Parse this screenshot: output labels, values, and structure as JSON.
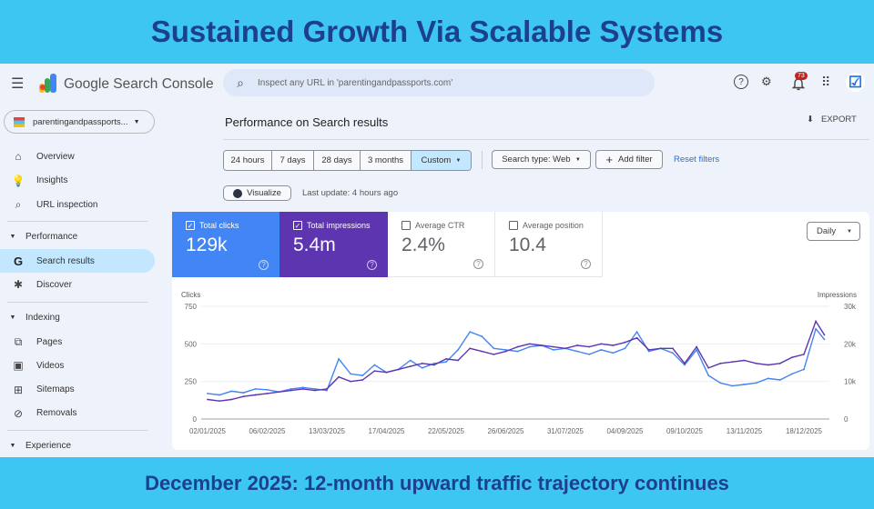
{
  "banner_top": "Sustained Growth Via Scalable Systems",
  "banner_bottom": "December 2025: 12-month upward traffic trajectory continues",
  "app": {
    "title": "Google Search Console",
    "search_placeholder": "Inspect any URL in 'parentingandpassports.com'",
    "notification_count": "73"
  },
  "property": "parentingandpassports...",
  "sidebar": {
    "items_top": [
      {
        "label": "Overview",
        "icon": "home-icon"
      },
      {
        "label": "Insights",
        "icon": "lightbulb-icon"
      },
      {
        "label": "URL inspection",
        "icon": "search-icon"
      }
    ],
    "performance": {
      "label": "Performance",
      "items": [
        {
          "label": "Search results",
          "icon": "google-g-icon",
          "active": true
        },
        {
          "label": "Discover",
          "icon": "asterisk-icon"
        }
      ]
    },
    "indexing": {
      "label": "Indexing",
      "items": [
        {
          "label": "Pages",
          "icon": "pages-icon"
        },
        {
          "label": "Videos",
          "icon": "videos-icon"
        },
        {
          "label": "Sitemaps",
          "icon": "sitemaps-icon"
        },
        {
          "label": "Removals",
          "icon": "removals-icon"
        }
      ]
    },
    "experience": {
      "label": "Experience"
    }
  },
  "page": {
    "title": "Performance on Search results",
    "export": "EXPORT"
  },
  "filters": {
    "ranges": [
      "24 hours",
      "7 days",
      "28 days",
      "3 months",
      "Custom"
    ],
    "selected": "Custom",
    "search_type": "Search type: Web",
    "add_filter": "Add filter",
    "reset": "Reset filters"
  },
  "visualize": "Visualize",
  "last_update": "Last update: 4 hours ago",
  "metrics": [
    {
      "label": "Total clicks",
      "value": "129k",
      "checked": true,
      "color": "#4285f4"
    },
    {
      "label": "Total impressions",
      "value": "5.4m",
      "checked": true,
      "color": "#5e35b1"
    },
    {
      "label": "Average CTR",
      "value": "2.4%",
      "checked": false
    },
    {
      "label": "Average position",
      "value": "10.4",
      "checked": false
    }
  ],
  "granularity": "Daily",
  "chart_data": {
    "type": "line",
    "ylabel_left": "Clicks",
    "ylabel_right": "Impressions",
    "yticks_left": [
      "0",
      "250",
      "500",
      "750"
    ],
    "yticks_right": [
      "0",
      "10k",
      "20k",
      "30k"
    ],
    "ylim_left": [
      0,
      750
    ],
    "ylim_right": [
      0,
      30000
    ],
    "xticks": [
      "02/01/2025",
      "06/02/2025",
      "13/03/2025",
      "17/04/2025",
      "22/05/2025",
      "26/06/2025",
      "31/07/2025",
      "04/09/2025",
      "09/10/2025",
      "13/11/2025",
      "18/12/2025"
    ],
    "grid": true,
    "x": [
      "02/01/2025",
      "09/01/2025",
      "16/01/2025",
      "23/01/2025",
      "30/01/2025",
      "06/02/2025",
      "13/02/2025",
      "20/02/2025",
      "27/02/2025",
      "06/03/2025",
      "13/03/2025",
      "20/03/2025",
      "27/03/2025",
      "03/04/2025",
      "10/04/2025",
      "17/04/2025",
      "24/04/2025",
      "01/05/2025",
      "08/05/2025",
      "15/05/2025",
      "22/05/2025",
      "29/05/2025",
      "05/06/2025",
      "12/06/2025",
      "19/06/2025",
      "26/06/2025",
      "03/07/2025",
      "10/07/2025",
      "17/07/2025",
      "24/07/2025",
      "31/07/2025",
      "07/08/2025",
      "14/08/2025",
      "21/08/2025",
      "28/08/2025",
      "04/09/2025",
      "11/09/2025",
      "18/09/2025",
      "25/09/2025",
      "02/10/2025",
      "09/10/2025",
      "16/10/2025",
      "23/10/2025",
      "30/10/2025",
      "06/11/2025",
      "13/11/2025",
      "20/11/2025",
      "27/11/2025",
      "04/12/2025",
      "11/12/2025",
      "18/12/2025",
      "25/12/2025",
      "30/12/2025"
    ],
    "series": [
      {
        "name": "Clicks",
        "axis": "left",
        "color": "#4285f4",
        "values": [
          170,
          160,
          185,
          175,
          200,
          195,
          180,
          200,
          210,
          200,
          190,
          400,
          300,
          290,
          360,
          310,
          330,
          390,
          340,
          370,
          380,
          460,
          580,
          550,
          470,
          460,
          450,
          480,
          490,
          460,
          470,
          450,
          430,
          460,
          440,
          470,
          580,
          450,
          470,
          440,
          360,
          460,
          290,
          240,
          220,
          230,
          240,
          270,
          260,
          300,
          330,
          600,
          530
        ]
      },
      {
        "name": "Impressions",
        "axis": "right",
        "color": "#5e35b1",
        "values": [
          5200,
          4800,
          5200,
          6000,
          6400,
          6800,
          7200,
          7600,
          8000,
          7600,
          8000,
          11200,
          10000,
          10400,
          12800,
          12400,
          13200,
          14000,
          14800,
          14400,
          16000,
          15600,
          18800,
          18000,
          17200,
          18000,
          19200,
          20000,
          19600,
          19200,
          18800,
          19600,
          19200,
          20000,
          19600,
          20400,
          21600,
          18400,
          18800,
          18800,
          14800,
          19200,
          13600,
          14800,
          15200,
          15600,
          14800,
          14400,
          14800,
          16400,
          17200,
          26000,
          22400
        ]
      }
    ]
  }
}
